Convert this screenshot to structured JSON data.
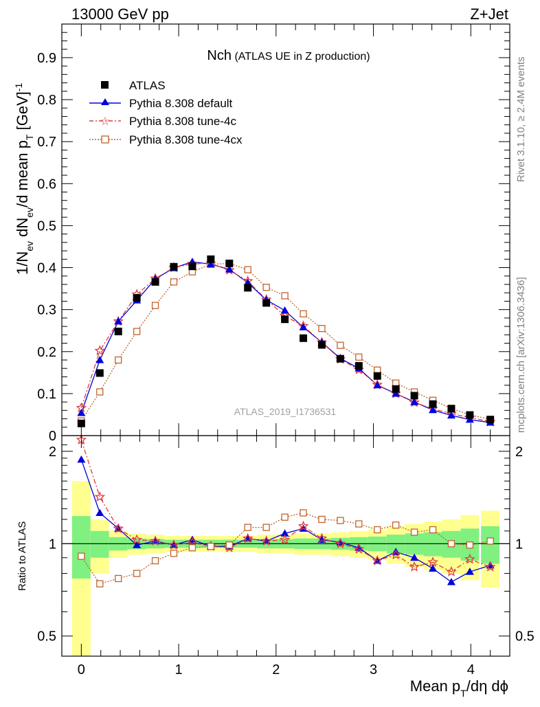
{
  "header": {
    "left": "13000 GeV pp",
    "right": "Z+Jet"
  },
  "side_labels": {
    "rivet": "Rivet 3.1.10, ≥ 2.4M events",
    "mcplots": "mcplots.cern.ch [arXiv:1306.3436]"
  },
  "plot_title": {
    "main": "Nch",
    "sub": "(ATLAS UE in Z production)"
  },
  "watermark": "ATLAS_2019_I1736531",
  "ratio_ylabel": "Ratio to ATLAS",
  "legend": {
    "atlas": "ATLAS",
    "default": "Pythia 8.308 default",
    "tune4c": "Pythia 8.308 tune-4c",
    "tune4cx": "Pythia 8.308 tune-4cx"
  },
  "colors": {
    "atlas": "#000000",
    "default": "#0000dd",
    "tune4c": "#e03a3a",
    "tune4cx": "#c0622a",
    "band_inner": "#80f080",
    "band_outer": "#ffff90"
  },
  "chart_data": [
    {
      "type": "scatter",
      "xlabel": "Mean p_T/dη dϕ",
      "ylabel": "1/N_ev dN_ev/d mean p_T [GeV]^-1",
      "xlim": [
        -0.2,
        4.4
      ],
      "ylim": [
        0,
        0.98
      ],
      "x": [
        0.0,
        0.19,
        0.38,
        0.57,
        0.76,
        0.95,
        1.14,
        1.33,
        1.52,
        1.71,
        1.9,
        2.09,
        2.28,
        2.47,
        2.66,
        2.85,
        3.04,
        3.23,
        3.42,
        3.61,
        3.8,
        3.99,
        4.2
      ],
      "series": [
        {
          "name": "ATLAS",
          "values": [
            0.029,
            0.149,
            0.248,
            0.328,
            0.366,
            0.402,
            0.403,
            0.42,
            0.41,
            0.352,
            0.316,
            0.277,
            0.232,
            0.216,
            0.183,
            0.166,
            0.142,
            0.111,
            0.095,
            0.075,
            0.064,
            0.049,
            0.038
          ]
        },
        {
          "name": "Pythia 8.308 default",
          "values": [
            0.054,
            0.18,
            0.272,
            0.322,
            0.373,
            0.399,
            0.414,
            0.408,
            0.396,
            0.364,
            0.323,
            0.298,
            0.258,
            0.222,
            0.184,
            0.16,
            0.12,
            0.1,
            0.08,
            0.061,
            0.048,
            0.038,
            0.031
          ]
        },
        {
          "name": "Pythia 8.308 tune-4c",
          "values": [
            0.066,
            0.202,
            0.272,
            0.336,
            0.374,
            0.4,
            0.409,
            0.41,
            0.394,
            0.368,
            0.324,
            0.285,
            0.261,
            0.222,
            0.182,
            0.157,
            0.121,
            0.1,
            0.079,
            0.064,
            0.052,
            0.043,
            0.033
          ]
        },
        {
          "name": "Pythia 8.308 tune-4cx",
          "values": [
            0.035,
            0.104,
            0.18,
            0.248,
            0.31,
            0.366,
            0.39,
            0.408,
            0.41,
            0.395,
            0.353,
            0.333,
            0.29,
            0.255,
            0.215,
            0.187,
            0.156,
            0.125,
            0.104,
            0.084,
            0.065,
            0.049,
            0.039
          ]
        }
      ]
    },
    {
      "type": "line",
      "ylabel": "Ratio to ATLAS",
      "ylim": [
        0.43,
        2.25
      ],
      "band_1sigma": [
        0.23,
        0.1,
        0.05,
        0.04,
        0.035,
        0.03,
        0.03,
        0.03,
        0.03,
        0.03,
        0.035,
        0.035,
        0.04,
        0.04,
        0.045,
        0.05,
        0.055,
        0.07,
        0.08,
        0.09,
        0.1,
        0.12,
        0.14
      ],
      "band_2sigma": [
        0.6,
        0.2,
        0.1,
        0.08,
        0.07,
        0.06,
        0.06,
        0.06,
        0.06,
        0.06,
        0.07,
        0.07,
        0.08,
        0.08,
        0.09,
        0.1,
        0.11,
        0.14,
        0.16,
        0.18,
        0.2,
        0.24,
        0.28
      ],
      "series": [
        {
          "name": "Pythia 8.308 default",
          "values": [
            1.88,
            1.26,
            1.12,
            0.99,
            1.02,
            0.99,
            1.03,
            0.98,
            0.98,
            1.04,
            1.02,
            1.08,
            1.12,
            1.03,
            1.01,
            0.97,
            0.88,
            0.94,
            0.9,
            0.83,
            0.75,
            0.81,
            0.85
          ]
        },
        {
          "name": "Pythia 8.308 tune-4c",
          "values": [
            2.18,
            1.42,
            1.12,
            1.03,
            1.02,
            0.99,
            1.01,
            0.98,
            0.97,
            1.04,
            1.02,
            1.03,
            1.14,
            1.04,
            1.0,
            0.96,
            0.88,
            0.92,
            0.84,
            0.87,
            0.81,
            0.89,
            0.84
          ]
        },
        {
          "name": "Pythia 8.308 tune-4cx",
          "values": [
            0.91,
            0.74,
            0.77,
            0.8,
            0.88,
            0.93,
            0.97,
            0.98,
            0.99,
            1.13,
            1.13,
            1.22,
            1.26,
            1.2,
            1.19,
            1.16,
            1.11,
            1.15,
            1.09,
            1.11,
            1.0,
            0.99,
            1.02
          ]
        }
      ]
    }
  ],
  "axes": {
    "main_y_ticks": [
      "0",
      "0.1",
      "0.2",
      "0.3",
      "0.4",
      "0.5",
      "0.6",
      "0.7",
      "0.8",
      "0.9"
    ],
    "ratio_y_ticks": [
      "0.5",
      "1",
      "2"
    ],
    "x_ticks": [
      "0",
      "1",
      "2",
      "3",
      "4"
    ]
  }
}
